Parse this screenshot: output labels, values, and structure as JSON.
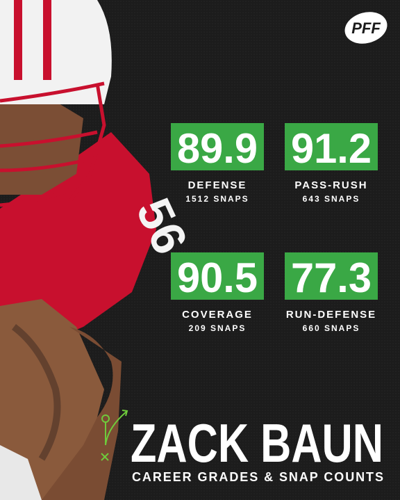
{
  "logo": "PFF",
  "player": {
    "name": "ZACK BAUN",
    "subtitle": "CAREER GRADES & SNAP COUNTS"
  },
  "stats": [
    {
      "grade": "89.9",
      "label": "DEFENSE",
      "snaps": "1512 SNAPS"
    },
    {
      "grade": "91.2",
      "label": "PASS-RUSH",
      "snaps": "643 SNAPS"
    },
    {
      "grade": "90.5",
      "label": "COVERAGE",
      "snaps": "209 SNAPS"
    },
    {
      "grade": "77.3",
      "label": "RUN-DEFENSE",
      "snaps": "660 SNAPS"
    }
  ]
}
